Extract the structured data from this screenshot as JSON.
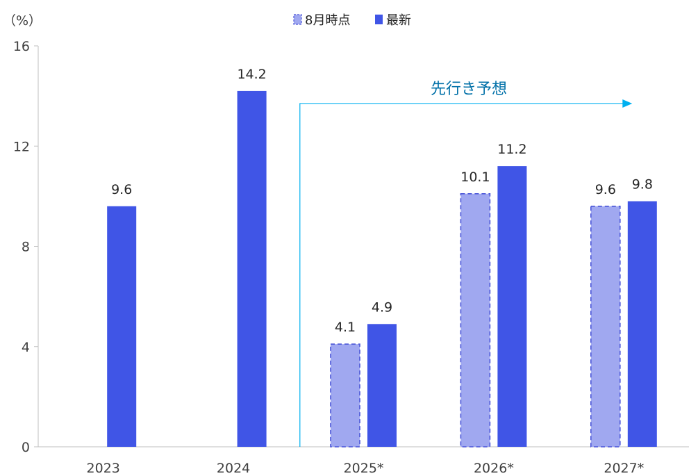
{
  "chart_data": {
    "type": "bar",
    "title": "",
    "xlabel": "",
    "ylabel": "",
    "unit_label": "（%）",
    "categories": [
      "2023",
      "2024",
      "2025*",
      "2026*",
      "2027*"
    ],
    "series": [
      {
        "name": "8月時点",
        "values": [
          null,
          null,
          4.1,
          10.1,
          9.6
        ],
        "color": "#a0a8f0",
        "style": "dashed-outline",
        "outline_color": "#4a55d8"
      },
      {
        "name": "最新",
        "values": [
          9.6,
          14.2,
          4.9,
          11.2,
          9.8
        ],
        "color": "#4055e6"
      }
    ],
    "ylim": [
      0,
      16
    ],
    "yticks": [
      0,
      4,
      8,
      12,
      16
    ],
    "grid": false,
    "legend": {
      "placement": "top-center"
    },
    "annotation": {
      "text": "先行き予想",
      "color": "#00b0f0",
      "text_color": "#0070a8",
      "from_category": "2025*",
      "to_category": "2027*",
      "arrow_level": 13.7
    }
  }
}
